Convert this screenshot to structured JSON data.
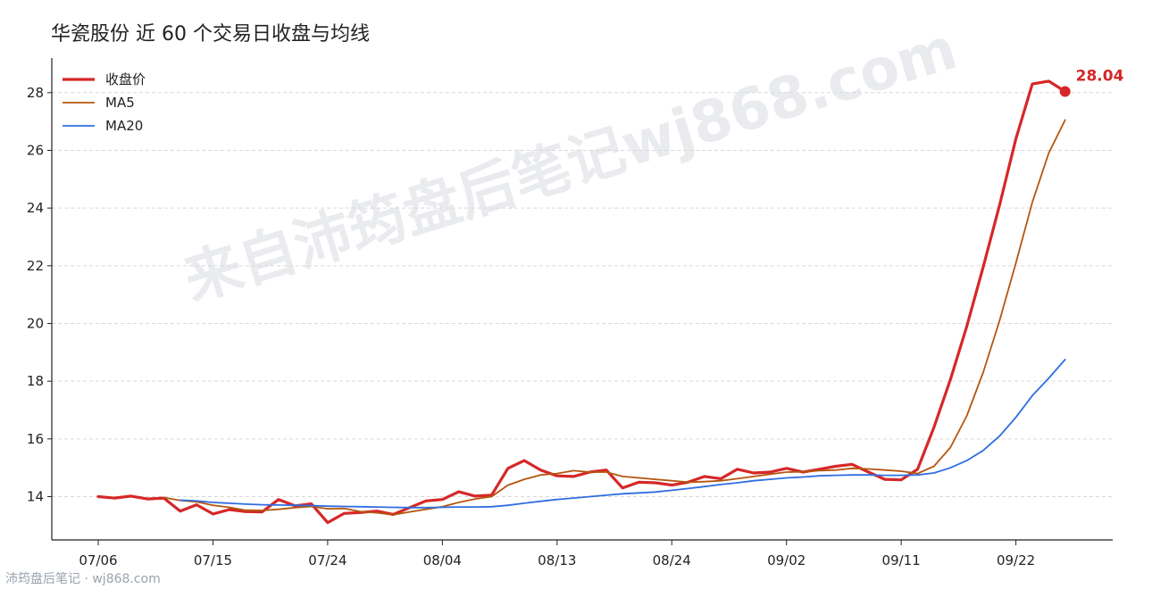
{
  "title": "华瓷股份 近 60 个交易日收盘与均线",
  "watermark": "来自沛筠盘后笔记wj868.com",
  "footer": "沛筠盘后笔记 · wj868.com",
  "colors": {
    "close": "#d62728",
    "ma5": "#b5560f",
    "ma20": "#2f6ee0",
    "grid": "#d9d9d9",
    "axis": "#222222"
  },
  "chart_data": {
    "type": "line",
    "title": "华瓷股份 近 60 个交易日收盘与均线",
    "xlabel": "",
    "ylabel": "",
    "ylim": [
      12.5,
      29.2
    ],
    "yticks": [
      14,
      16,
      18,
      20,
      22,
      24,
      26,
      28
    ],
    "xtick_labels": [
      "07/06",
      "07/15",
      "07/24",
      "08/04",
      "08/13",
      "08/24",
      "09/02",
      "09/11",
      "09/22"
    ],
    "xtick_index": [
      0,
      7,
      14,
      21,
      28,
      35,
      42,
      49,
      56
    ],
    "grid": "horizontal dashed",
    "legend": "top-left",
    "last_value_label": "28.04",
    "series": [
      {
        "name": "收盘价",
        "color": "#d62728",
        "values": [
          14.0,
          13.95,
          14.02,
          13.92,
          13.95,
          13.5,
          13.72,
          13.4,
          13.55,
          13.48,
          13.47,
          13.9,
          13.68,
          13.75,
          13.1,
          13.42,
          13.45,
          13.5,
          13.38,
          13.62,
          13.85,
          13.9,
          14.17,
          14.02,
          14.05,
          14.98,
          15.25,
          14.92,
          14.72,
          14.7,
          14.85,
          14.92,
          14.3,
          14.5,
          14.48,
          14.4,
          14.5,
          14.7,
          14.62,
          14.95,
          14.82,
          14.85,
          14.98,
          14.85,
          14.95,
          15.05,
          15.12,
          14.85,
          14.6,
          14.58,
          14.95,
          16.4,
          18.05,
          19.9,
          21.95,
          24.1,
          26.4,
          28.3,
          28.4,
          28.04
        ]
      },
      {
        "name": "MA5",
        "color": "#b5560f",
        "values": [
          null,
          null,
          null,
          null,
          13.97,
          13.87,
          13.82,
          13.7,
          13.63,
          13.53,
          13.52,
          13.56,
          13.62,
          13.66,
          13.58,
          13.59,
          13.48,
          13.44,
          13.37,
          13.47,
          13.56,
          13.65,
          13.8,
          13.92,
          14.0,
          14.4,
          14.6,
          14.75,
          14.8,
          14.9,
          14.85,
          14.85,
          14.7,
          14.65,
          14.6,
          14.55,
          14.5,
          14.52,
          14.55,
          14.62,
          14.7,
          14.78,
          14.85,
          14.86,
          14.9,
          14.92,
          14.98,
          14.96,
          14.92,
          14.88,
          14.8,
          15.05,
          15.7,
          16.8,
          18.3,
          20.1,
          22.1,
          24.2,
          25.9,
          27.05
        ]
      },
      {
        "name": "MA20",
        "color": "#2f6ee0",
        "values": [
          null,
          null,
          null,
          null,
          null,
          13.88,
          13.85,
          13.8,
          13.77,
          13.74,
          13.72,
          13.71,
          13.7,
          13.69,
          13.67,
          13.66,
          13.65,
          13.64,
          13.63,
          13.62,
          13.62,
          13.63,
          13.64,
          13.64,
          13.65,
          13.7,
          13.77,
          13.84,
          13.9,
          13.95,
          14.0,
          14.05,
          14.1,
          14.13,
          14.16,
          14.22,
          14.28,
          14.35,
          14.42,
          14.48,
          14.55,
          14.6,
          14.65,
          14.68,
          14.72,
          14.74,
          14.75,
          14.75,
          14.74,
          14.74,
          14.75,
          14.82,
          15.0,
          15.25,
          15.6,
          16.1,
          16.75,
          17.5,
          18.1,
          18.75
        ]
      }
    ]
  }
}
